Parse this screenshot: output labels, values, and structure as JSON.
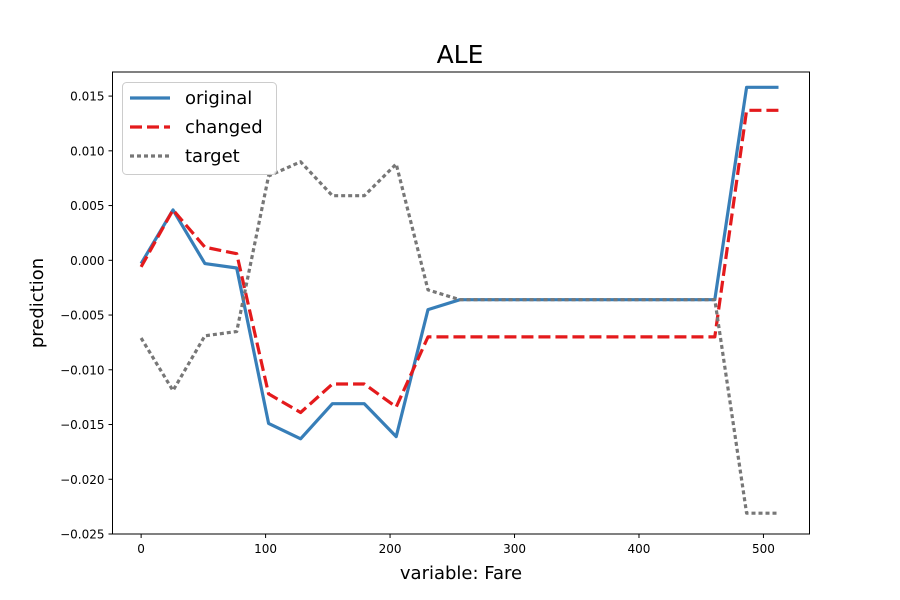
{
  "chart_data": {
    "type": "line",
    "title": "ALE",
    "xlabel": "variable: Fare",
    "ylabel": "prediction",
    "xlim": [
      -23,
      537
    ],
    "ylim": [
      -0.025,
      0.0172
    ],
    "xticks": [
      0,
      100,
      200,
      300,
      400,
      500
    ],
    "yticks": [
      -0.025,
      -0.02,
      -0.015,
      -0.01,
      -0.005,
      0.0,
      0.005,
      0.01,
      0.015
    ],
    "ytick_labels": [
      "−0.025",
      "−0.020",
      "−0.015",
      "−0.010",
      "−0.005",
      "0.000",
      "0.005",
      "0.010",
      "0.015"
    ],
    "grid": false,
    "legend_position": "top-left",
    "series": [
      {
        "name": "original",
        "color": "#377eb8",
        "style": "solid",
        "points": [
          [
            0,
            -0.0003
          ],
          [
            25.6,
            0.0046
          ],
          [
            51.2,
            -0.0003
          ],
          [
            76.8,
            -0.0007
          ],
          [
            102.4,
            -0.0149
          ],
          [
            128.1,
            -0.0163
          ],
          [
            153.7,
            -0.0131
          ],
          [
            179.3,
            -0.0131
          ],
          [
            204.9,
            -0.0161
          ],
          [
            230.5,
            -0.0045
          ],
          [
            256.1,
            -0.0036
          ],
          [
            281.7,
            -0.0036
          ],
          [
            460.9,
            -0.0036
          ],
          [
            486.5,
            0.0158
          ],
          [
            512.1,
            0.0158
          ]
        ]
      },
      {
        "name": "changed",
        "color": "#e41a1c",
        "style": "dashed",
        "points": [
          [
            0,
            -0.0006
          ],
          [
            25.6,
            0.0046
          ],
          [
            51.2,
            0.0012
          ],
          [
            76.8,
            0.0006
          ],
          [
            102.4,
            -0.0122
          ],
          [
            128.1,
            -0.0139
          ],
          [
            153.7,
            -0.0113
          ],
          [
            179.3,
            -0.0113
          ],
          [
            204.9,
            -0.0134
          ],
          [
            230.5,
            -0.007
          ],
          [
            256.1,
            -0.007
          ],
          [
            460.9,
            -0.007
          ],
          [
            486.5,
            0.0137
          ],
          [
            512.1,
            0.0137
          ]
        ]
      },
      {
        "name": "target",
        "color": "#777777",
        "style": "dotted",
        "points": [
          [
            0,
            -0.0071
          ],
          [
            25.6,
            -0.0119
          ],
          [
            51.2,
            -0.0069
          ],
          [
            76.8,
            -0.0065
          ],
          [
            102.4,
            0.0077
          ],
          [
            128.1,
            0.009
          ],
          [
            153.7,
            0.0059
          ],
          [
            179.3,
            0.0059
          ],
          [
            204.9,
            0.0088
          ],
          [
            230.5,
            -0.0027
          ],
          [
            256.1,
            -0.0036
          ],
          [
            460.9,
            -0.0036
          ],
          [
            486.5,
            -0.0231
          ],
          [
            512.1,
            -0.0231
          ]
        ]
      }
    ]
  }
}
